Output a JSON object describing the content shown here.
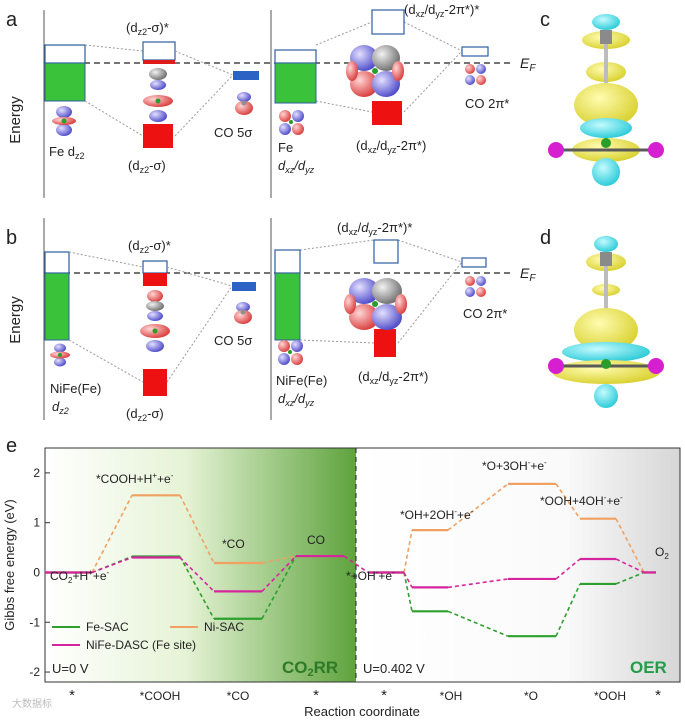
{
  "panels": {
    "a": "a",
    "b": "b",
    "c": "c",
    "d": "d",
    "e": "e"
  },
  "mo": {
    "energy_label": "Energy",
    "ef_label": "E",
    "ef_sub": "F",
    "top": {
      "fe_dz2": "Fe d",
      "dz2_sub": "z2",
      "dz2_sigma_star": "(d",
      "dz2_sigma_star_tail": "-σ)*",
      "dz2_sigma": "(d",
      "dz2_sigma_tail": "-σ)",
      "co5s": "CO 5σ",
      "fe_dxz": "Fe",
      "dxz_dyz": "d",
      "dxz_star": "(d",
      "dxz_star_tail": "/d",
      "dxz_star_end": "-2π*)*",
      "dxz_bond": "(d",
      "dxz_bond_tail": "/d",
      "dxz_bond_end": "-2π*)",
      "co2pi": "CO 2π*",
      "xz": "xz",
      "yz": "yz"
    },
    "bottom": {
      "nife_fe": "NiFe(Fe)",
      "dz2": "d",
      "dz2_sub": "z2",
      "co5s": "CO 5σ",
      "co2pi": "CO 2π*",
      "star_xz": "(d",
      "star_end": "-2π*)*",
      "bond_label": "(d",
      "bond_end": "-2π*)"
    }
  },
  "chart_data": {
    "type": "line",
    "ylabel": "Gibbs free energy (eV)",
    "xlabel": "Reaction coordinate",
    "ylim": [
      -2.2,
      2.5
    ],
    "yticks": [
      -2,
      -1,
      0,
      1,
      2
    ],
    "xticks": [
      "*",
      "*COOH",
      "*CO",
      "*",
      "*",
      "*OH",
      "*O",
      "*OOH",
      "*"
    ],
    "co2rr": {
      "title": "CO2RR",
      "title_sub": "2",
      "title_main": "CO",
      "title_end": "RR",
      "potential": "U=0 V",
      "series": [
        {
          "name": "Fe-SAC",
          "color": "#2ca02c",
          "values": [
            0.0,
            0.32,
            -0.93,
            0.33
          ]
        },
        {
          "name": "Ni-SAC",
          "color": "#f0a060",
          "values": [
            0.0,
            1.55,
            0.19,
            0.33
          ]
        },
        {
          "name": "NiFe-DASC (Fe site)",
          "color": "#d6249f",
          "values": [
            0.0,
            0.3,
            -0.38,
            0.33
          ]
        }
      ],
      "annotations": [
        "*COOH+H",
        "+e",
        "*CO",
        "CO",
        "CO",
        "+H",
        "+e"
      ]
    },
    "oer": {
      "title": "OER",
      "potential": "U=0.402 V",
      "series": [
        {
          "name": "Fe-SAC",
          "color": "#2ca02c",
          "values": [
            0.0,
            -0.78,
            -1.28,
            -0.23,
            0.0
          ]
        },
        {
          "name": "Ni-SAC",
          "color": "#f0a060",
          "values": [
            0.0,
            0.85,
            1.78,
            1.08,
            0.0
          ]
        },
        {
          "name": "NiFe-DASC (Fe site)",
          "color": "#d6249f",
          "values": [
            0.0,
            -0.3,
            -0.13,
            0.27,
            0.0
          ]
        }
      ],
      "annotations": [
        "*+OH",
        "+e",
        "*OH+2OH",
        "+e",
        "*O+3OH",
        "+e",
        "*OOH+4OH",
        "+e",
        "O"
      ]
    },
    "legend": [
      "Fe-SAC",
      "Ni-SAC",
      "NiFe-DASC (Fe site)"
    ],
    "watermark": "大数据标"
  }
}
